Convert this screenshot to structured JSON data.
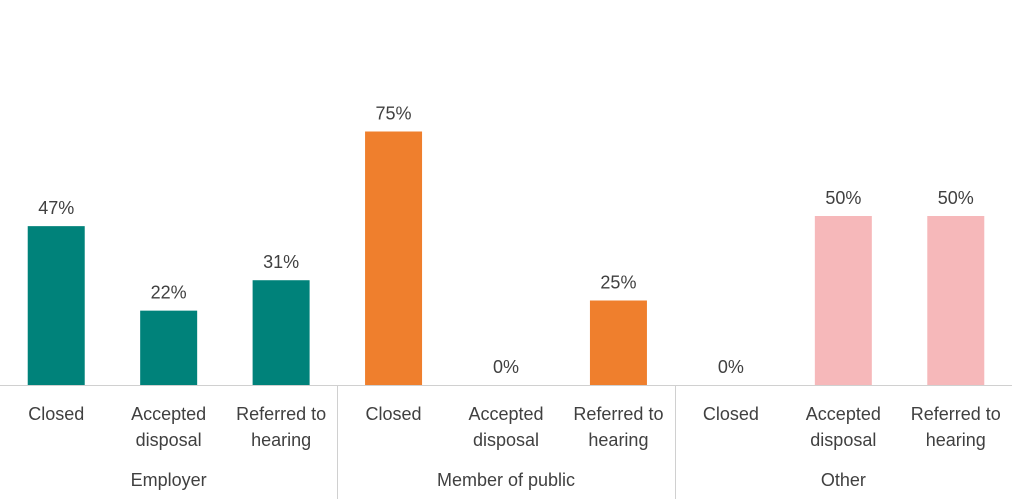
{
  "chart_data": {
    "type": "bar",
    "title": "",
    "xlabel": "",
    "ylabel": "",
    "ylim": [
      0,
      100
    ],
    "grid": false,
    "legend": "none",
    "value_suffix": "%",
    "groups": [
      {
        "name": "Employer",
        "color": "#00827a",
        "categories": [
          [
            "Closed"
          ],
          [
            "Accepted",
            "disposal"
          ],
          [
            "Referred to",
            "hearing"
          ]
        ],
        "values": [
          47,
          22,
          31
        ]
      },
      {
        "name": "Member of public",
        "color": "#ef7f2d",
        "categories": [
          [
            "Closed"
          ],
          [
            "Accepted",
            "disposal"
          ],
          [
            "Referred to",
            "hearing"
          ]
        ],
        "values": [
          75,
          0,
          25
        ]
      },
      {
        "name": "Other",
        "color": "#f6b8ba",
        "categories": [
          [
            "Closed"
          ],
          [
            "Accepted",
            "disposal"
          ],
          [
            "Referred to",
            "hearing"
          ]
        ],
        "values": [
          0,
          50,
          50
        ]
      }
    ],
    "axis_color": "#d0d0d0",
    "text_color": "#404040"
  }
}
